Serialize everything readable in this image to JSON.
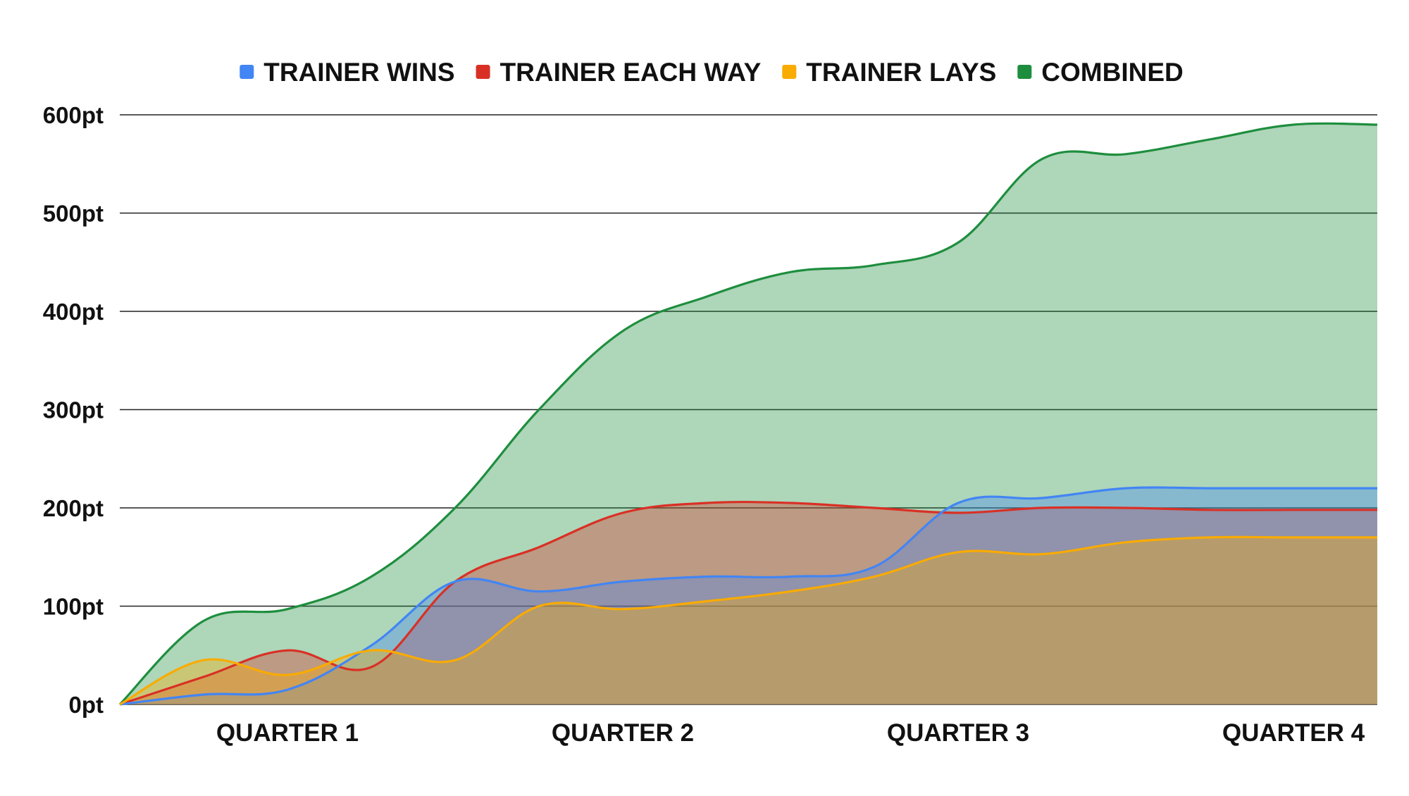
{
  "chart_data": {
    "type": "area",
    "title": "",
    "xlabel": "",
    "ylabel": "",
    "ylim": [
      0,
      600
    ],
    "y_ticks": [
      {
        "value": 0,
        "label": "0pt"
      },
      {
        "value": 100,
        "label": "100pt"
      },
      {
        "value": 200,
        "label": "200pt"
      },
      {
        "value": 300,
        "label": "300pt"
      },
      {
        "value": 400,
        "label": "400pt"
      },
      {
        "value": 500,
        "label": "500pt"
      },
      {
        "value": 600,
        "label": "600pt"
      }
    ],
    "x_tick_labels": [
      {
        "x": 2,
        "label": "QUARTER 1"
      },
      {
        "x": 6,
        "label": "QUARTER 2"
      },
      {
        "x": 10,
        "label": "QUARTER 3"
      },
      {
        "x": 14,
        "label": "QUARTER 4"
      }
    ],
    "x": [
      0,
      1,
      2,
      3,
      4,
      5,
      6,
      7,
      8,
      9,
      10,
      11,
      12,
      13,
      14,
      15
    ],
    "grid": true,
    "legend_position": "top",
    "series": [
      {
        "name": "COMBINED",
        "color": "#1e8e3e",
        "values": [
          0,
          85,
          97,
          130,
          200,
          300,
          380,
          415,
          440,
          447,
          470,
          555,
          560,
          575,
          590,
          590
        ]
      },
      {
        "name": "TRAINER EACH WAY",
        "color": "#d93025",
        "values": [
          0,
          28,
          55,
          38,
          125,
          160,
          195,
          205,
          205,
          200,
          195,
          200,
          200,
          198,
          198,
          198
        ]
      },
      {
        "name": "TRAINER WINS",
        "color": "#4285f4",
        "values": [
          0,
          10,
          15,
          60,
          125,
          115,
          125,
          130,
          130,
          140,
          205,
          210,
          220,
          220,
          220,
          220
        ]
      },
      {
        "name": "TRAINER LAYS",
        "color": "#f9ab00",
        "values": [
          0,
          45,
          30,
          55,
          45,
          100,
          97,
          105,
          115,
          130,
          155,
          153,
          165,
          170,
          170,
          170
        ]
      }
    ],
    "legend_order": [
      "TRAINER WINS",
      "TRAINER EACH WAY",
      "TRAINER LAYS",
      "COMBINED"
    ]
  }
}
